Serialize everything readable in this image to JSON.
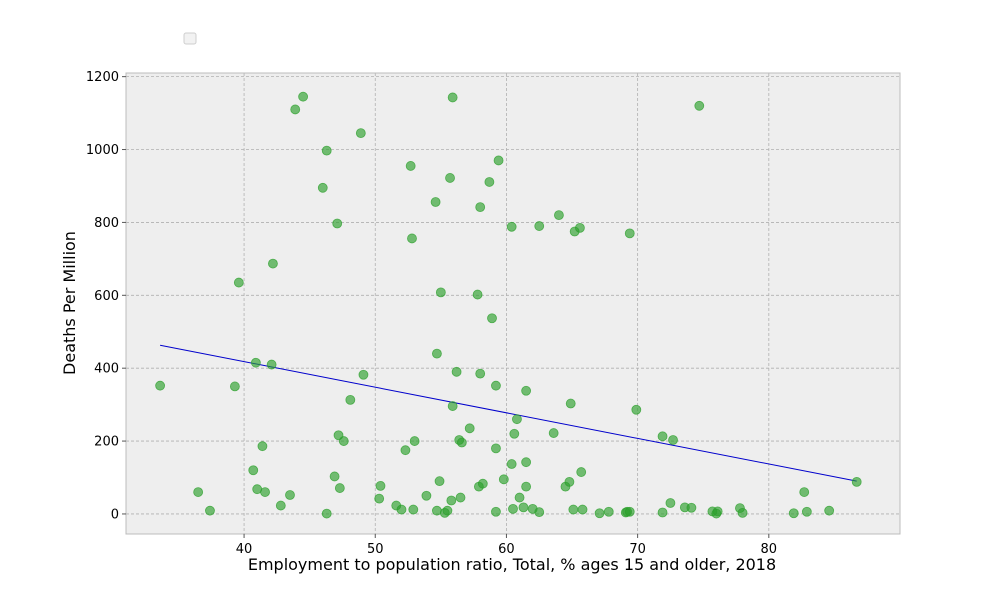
{
  "chart_data": {
    "type": "scatter",
    "title": "",
    "xlabel": "Employment to population ratio, Total, % ages 15 and older, 2018",
    "ylabel": "Deaths Per Million",
    "xlim": [
      31,
      90
    ],
    "ylim": [
      -55,
      1210
    ],
    "xticks": [
      40,
      50,
      60,
      70,
      80
    ],
    "yticks": [
      0,
      200,
      400,
      600,
      800,
      1000,
      1200
    ],
    "grid": true,
    "legend": "top-left, empty",
    "colors": {
      "points": "#2ca02c",
      "trend_line": "#0000cc",
      "plot_background": "#eeeeee",
      "grid": "#b0b0b0",
      "frame": "#bcbcbc"
    },
    "series": [
      {
        "kind": "points",
        "points": [
          [
            33.6,
            352
          ],
          [
            36.5,
            60
          ],
          [
            37.4,
            9
          ],
          [
            39.3,
            350
          ],
          [
            39.6,
            635
          ],
          [
            40.7,
            120
          ],
          [
            40.9,
            415
          ],
          [
            41.0,
            68
          ],
          [
            41.4,
            186
          ],
          [
            41.6,
            60
          ],
          [
            42.1,
            410
          ],
          [
            42.2,
            687
          ],
          [
            42.8,
            23
          ],
          [
            43.5,
            52
          ],
          [
            43.9,
            1110
          ],
          [
            44.5,
            1145
          ],
          [
            46.0,
            895
          ],
          [
            46.3,
            997
          ],
          [
            46.3,
            1
          ],
          [
            46.9,
            103
          ],
          [
            47.1,
            797
          ],
          [
            47.2,
            216
          ],
          [
            47.3,
            71
          ],
          [
            47.6,
            200
          ],
          [
            48.1,
            313
          ],
          [
            48.9,
            1045
          ],
          [
            49.1,
            382
          ],
          [
            50.3,
            42
          ],
          [
            50.4,
            77
          ],
          [
            51.6,
            23
          ],
          [
            52.0,
            12
          ],
          [
            52.3,
            175
          ],
          [
            52.7,
            955
          ],
          [
            52.8,
            756
          ],
          [
            52.9,
            12
          ],
          [
            53.0,
            200
          ],
          [
            53.9,
            50
          ],
          [
            54.6,
            856
          ],
          [
            54.7,
            440
          ],
          [
            54.7,
            9
          ],
          [
            54.9,
            90
          ],
          [
            55.0,
            608
          ],
          [
            55.3,
            3
          ],
          [
            55.5,
            9
          ],
          [
            55.7,
            922
          ],
          [
            55.8,
            37
          ],
          [
            55.9,
            1143
          ],
          [
            55.9,
            296
          ],
          [
            56.2,
            390
          ],
          [
            56.4,
            203
          ],
          [
            56.5,
            45
          ],
          [
            56.6,
            196
          ],
          [
            57.2,
            235
          ],
          [
            57.8,
            602
          ],
          [
            57.9,
            75
          ],
          [
            58.0,
            842
          ],
          [
            58.0,
            385
          ],
          [
            58.2,
            83
          ],
          [
            58.7,
            911
          ],
          [
            58.9,
            537
          ],
          [
            59.2,
            352
          ],
          [
            59.2,
            180
          ],
          [
            59.2,
            6
          ],
          [
            59.4,
            970
          ],
          [
            59.8,
            95
          ],
          [
            60.4,
            788
          ],
          [
            60.4,
            137
          ],
          [
            60.5,
            14
          ],
          [
            60.6,
            220
          ],
          [
            60.8,
            260
          ],
          [
            61.0,
            45
          ],
          [
            61.3,
            18
          ],
          [
            61.5,
            338
          ],
          [
            61.5,
            75
          ],
          [
            61.5,
            142
          ],
          [
            62.0,
            14
          ],
          [
            62.5,
            790
          ],
          [
            62.5,
            5
          ],
          [
            63.6,
            222
          ],
          [
            64.0,
            820
          ],
          [
            64.5,
            75
          ],
          [
            64.8,
            88
          ],
          [
            64.9,
            303
          ],
          [
            65.1,
            12
          ],
          [
            65.2,
            775
          ],
          [
            65.6,
            785
          ],
          [
            65.7,
            115
          ],
          [
            65.8,
            12
          ],
          [
            67.1,
            2
          ],
          [
            67.8,
            6
          ],
          [
            69.1,
            4
          ],
          [
            69.2,
            6
          ],
          [
            69.4,
            770
          ],
          [
            69.4,
            6
          ],
          [
            69.9,
            286
          ],
          [
            71.9,
            213
          ],
          [
            71.9,
            4
          ],
          [
            72.5,
            30
          ],
          [
            72.7,
            203
          ],
          [
            73.6,
            18
          ],
          [
            74.1,
            17
          ],
          [
            74.7,
            1120
          ],
          [
            75.7,
            7
          ],
          [
            76.0,
            1
          ],
          [
            76.1,
            7
          ],
          [
            77.8,
            16
          ],
          [
            78.0,
            3
          ],
          [
            81.9,
            2
          ],
          [
            82.7,
            60
          ],
          [
            82.9,
            6
          ],
          [
            84.6,
            9
          ],
          [
            86.7,
            88
          ]
        ]
      },
      {
        "kind": "trend",
        "points": [
          [
            33.6,
            463
          ],
          [
            86.7,
            90
          ]
        ]
      }
    ]
  }
}
